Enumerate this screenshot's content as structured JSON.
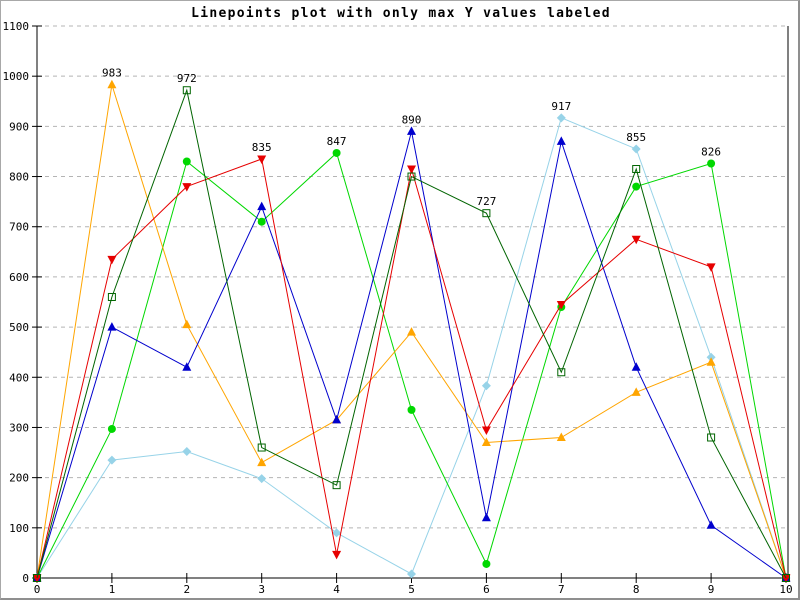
{
  "window": {
    "background": "#ffffff",
    "frame_border": "#8f8f8f"
  },
  "chart_data": {
    "type": "line",
    "title": "Linepoints plot with only max Y values labeled",
    "subtitle": "",
    "xlabel": "",
    "ylabel": "",
    "xlim": [
      0,
      10
    ],
    "ylim": [
      0,
      1100
    ],
    "xticks": [
      0,
      1,
      2,
      3,
      4,
      5,
      6,
      7,
      8,
      9,
      10
    ],
    "yticks": [
      0,
      100,
      200,
      300,
      400,
      500,
      600,
      700,
      800,
      900,
      1000,
      1100
    ],
    "grid": "horizontal-dashed",
    "grid_color": "#b4b4b4",
    "axis_color": "#000000",
    "label_color": "#000000",
    "legend_position": "none",
    "x": [
      0,
      1,
      2,
      3,
      4,
      5,
      6,
      7,
      8,
      9,
      10
    ],
    "series": [
      {
        "name": "lightblue",
        "color": "#97d3e8",
        "marker": "diamond",
        "values": [
          0,
          235,
          252,
          198,
          90,
          8,
          383,
          917,
          855,
          440,
          0
        ]
      },
      {
        "name": "green",
        "color": "#00d800",
        "marker": "circle",
        "values": [
          0,
          297,
          830,
          710,
          847,
          335,
          28,
          540,
          780,
          826,
          0
        ]
      },
      {
        "name": "orange",
        "color": "#ffa500",
        "marker": "triangle-up",
        "values": [
          0,
          983,
          505,
          230,
          315,
          490,
          270,
          280,
          370,
          430,
          0
        ]
      },
      {
        "name": "blue",
        "color": "#0000cd",
        "marker": "triangle-up",
        "values": [
          0,
          500,
          420,
          740,
          315,
          890,
          120,
          870,
          420,
          105,
          0
        ]
      },
      {
        "name": "red",
        "color": "#e60000",
        "marker": "triangle-down",
        "values": [
          0,
          635,
          780,
          835,
          47,
          815,
          295,
          545,
          675,
          620,
          0
        ]
      },
      {
        "name": "darkgreen",
        "color": "#006400",
        "marker": "open-square",
        "values": [
          0,
          560,
          972,
          260,
          185,
          800,
          727,
          410,
          815,
          280,
          0
        ]
      }
    ],
    "max_labels": [
      {
        "x": 1,
        "value": "983",
        "series": "orange"
      },
      {
        "x": 2,
        "value": "972",
        "series": "darkgreen"
      },
      {
        "x": 3,
        "value": "835",
        "series": "red"
      },
      {
        "x": 4,
        "value": "847",
        "series": "green"
      },
      {
        "x": 5,
        "value": "890",
        "series": "blue"
      },
      {
        "x": 6,
        "value": "727",
        "series": "darkgreen"
      },
      {
        "x": 7,
        "value": "917",
        "series": "lightblue"
      },
      {
        "x": 8,
        "value": "855",
        "series": "lightblue"
      },
      {
        "x": 9,
        "value": "826",
        "series": "green"
      }
    ]
  }
}
